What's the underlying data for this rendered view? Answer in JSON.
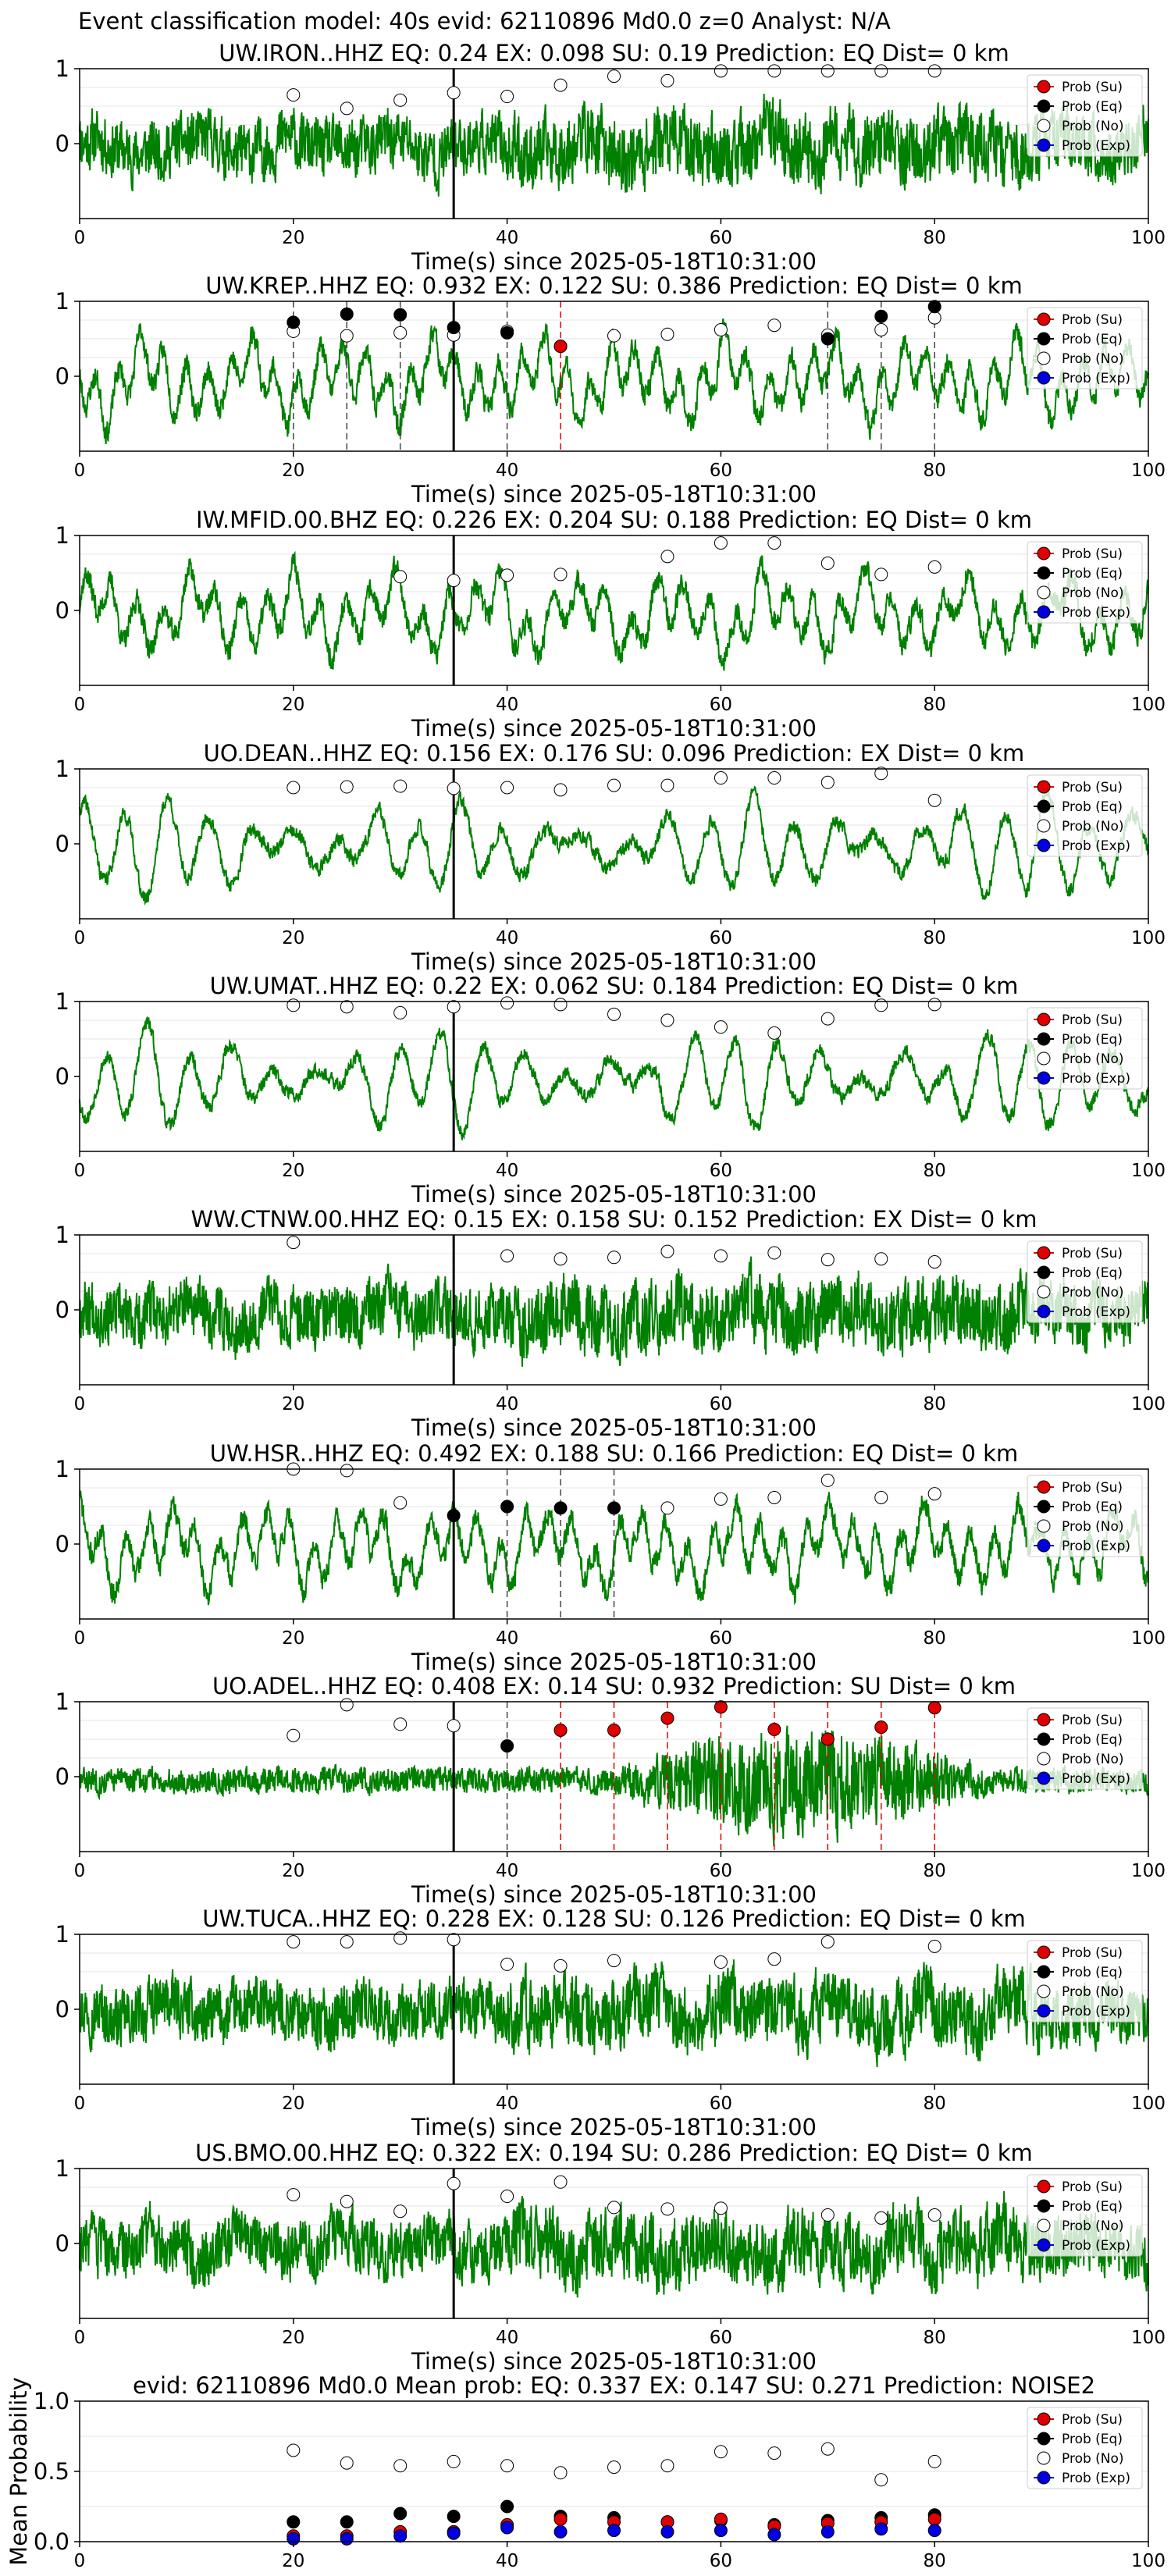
{
  "figure": {
    "title": "Event classification model: 40s evid: 62110896 Md0.0 z=0 Analyst: N/A"
  },
  "legend": {
    "entries": [
      {
        "label": "Prob (Su)",
        "color": "#e00000"
      },
      {
        "label": "Prob (Eq)",
        "color": "#000000"
      },
      {
        "label": "Prob (No)",
        "color": "#ffffff"
      },
      {
        "label": "Prob (Exp)",
        "color": "#0000e0"
      }
    ]
  },
  "colors": {
    "trace": "#008000",
    "su": "#e00000",
    "eq": "#000000",
    "no": "#ffffff",
    "exp": "#0000e0",
    "pick": "#000000"
  },
  "chart_data": [
    {
      "type": "line",
      "title": "UW.IRON..HHZ   EQ: 0.24  EX: 0.098  SU: 0.19   Prediction: EQ    Dist= 0 km",
      "xlabel": "Time(s) since 2025-05-18T10:31:00",
      "xlim": [
        0,
        100
      ],
      "xticks": [
        0,
        20,
        40,
        60,
        80,
        100
      ],
      "ylim": [
        -1,
        1
      ],
      "yticks": [
        0,
        1
      ],
      "pick_time": 35,
      "seed": 11,
      "trace_style": "noisy",
      "prob_times": [
        20,
        25,
        30,
        35,
        40,
        45,
        50,
        55,
        60,
        65,
        70,
        75,
        80
      ],
      "no": [
        0.65,
        0.47,
        0.58,
        0.68,
        0.63,
        0.78,
        0.9,
        0.84,
        0.97,
        0.97,
        0.97,
        0.97,
        0.97
      ],
      "eq_points": [],
      "su_points": [],
      "exp_points": [],
      "eq_lines": [],
      "su_lines": [],
      "exp_lines": []
    },
    {
      "type": "line",
      "title": "UW.KREP..HHZ   EQ: 0.932  EX: 0.122  SU: 0.386   Prediction: EQ    Dist= 0 km",
      "xlabel": "Time(s) since 2025-05-18T10:31:00",
      "xlim": [
        0,
        100
      ],
      "xticks": [
        0,
        20,
        40,
        60,
        80,
        100
      ],
      "ylim": [
        -1,
        1
      ],
      "yticks": [
        0,
        1
      ],
      "pick_time": 35,
      "seed": 23,
      "trace_style": "smooth",
      "prob_times": [
        20,
        25,
        30,
        35,
        40,
        45,
        50,
        55,
        60,
        65,
        70,
        75,
        80
      ],
      "no": [
        0.6,
        0.54,
        0.58,
        0.55,
        0.6,
        0.4,
        0.54,
        0.56,
        0.62,
        0.68,
        0.55,
        0.62,
        0.78
      ],
      "eq_points": [
        [
          20,
          0.72
        ],
        [
          25,
          0.83
        ],
        [
          30,
          0.82
        ],
        [
          35,
          0.65
        ],
        [
          40,
          0.58
        ],
        [
          70,
          0.5
        ],
        [
          75,
          0.8
        ],
        [
          80,
          0.93
        ]
      ],
      "su_points": [
        [
          45,
          0.4
        ]
      ],
      "exp_points": [],
      "eq_lines": [
        20,
        25,
        30,
        40,
        70,
        75,
        80
      ],
      "su_lines": [
        45
      ],
      "exp_lines": []
    },
    {
      "type": "line",
      "title": "IW.MFID.00.BHZ   EQ: 0.226  EX: 0.204  SU: 0.188   Prediction: EQ    Dist= 0 km",
      "xlabel": "Time(s) since 2025-05-18T10:31:00",
      "xlim": [
        0,
        100
      ],
      "xticks": [
        0,
        20,
        40,
        60,
        80,
        100
      ],
      "ylim": [
        -1,
        1
      ],
      "yticks": [
        0,
        1
      ],
      "pick_time": 35,
      "seed": 37,
      "trace_style": "smooth",
      "prob_times": [
        30,
        35,
        40,
        45,
        55,
        60,
        65,
        70,
        75,
        80
      ],
      "no": [
        0.45,
        0.4,
        0.47,
        0.48,
        0.72,
        0.9,
        0.9,
        0.63,
        0.48,
        0.58
      ],
      "eq_points": [],
      "su_points": [],
      "exp_points": [],
      "eq_lines": [],
      "su_lines": [],
      "exp_lines": []
    },
    {
      "type": "line",
      "title": "UO.DEAN..HHZ   EQ: 0.156  EX: 0.176  SU: 0.096   Prediction: EX    Dist= 0 km",
      "xlabel": "Time(s) since 2025-05-18T10:31:00",
      "xlim": [
        0,
        100
      ],
      "xticks": [
        0,
        20,
        40,
        60,
        80,
        100
      ],
      "ylim": [
        -1,
        1
      ],
      "yticks": [
        0,
        1
      ],
      "pick_time": 35,
      "seed": 41,
      "trace_style": "wave",
      "prob_times": [
        20,
        25,
        30,
        35,
        40,
        45,
        50,
        55,
        60,
        65,
        70,
        75,
        80
      ],
      "no": [
        0.75,
        0.76,
        0.77,
        0.74,
        0.75,
        0.72,
        0.78,
        0.78,
        0.88,
        0.88,
        0.82,
        0.94,
        0.58
      ],
      "eq_points": [],
      "su_points": [],
      "exp_points": [],
      "eq_lines": [],
      "su_lines": [],
      "exp_lines": []
    },
    {
      "type": "line",
      "title": "UW.UMAT..HHZ   EQ: 0.22  EX: 0.062  SU: 0.184   Prediction: EQ    Dist= 0 km",
      "xlabel": "Time(s) since 2025-05-18T10:31:00",
      "xlim": [
        0,
        100
      ],
      "xticks": [
        0,
        20,
        40,
        60,
        80,
        100
      ],
      "ylim": [
        -1,
        1
      ],
      "yticks": [
        0,
        1
      ],
      "pick_time": 35,
      "seed": 53,
      "trace_style": "wave",
      "prob_times": [
        20,
        25,
        30,
        35,
        40,
        45,
        50,
        55,
        60,
        65,
        70,
        75,
        80
      ],
      "no": [
        0.95,
        0.93,
        0.85,
        0.93,
        0.98,
        0.96,
        0.83,
        0.75,
        0.66,
        0.58,
        0.77,
        0.95,
        0.96
      ],
      "eq_points": [],
      "su_points": [],
      "exp_points": [],
      "eq_lines": [],
      "su_lines": [],
      "exp_lines": []
    },
    {
      "type": "line",
      "title": "WW.CTNW.00.HHZ   EQ: 0.15  EX: 0.158  SU: 0.152   Prediction: EX    Dist= 0 km",
      "xlabel": "Time(s) since 2025-05-18T10:31:00",
      "xlim": [
        0,
        100
      ],
      "xticks": [
        0,
        20,
        40,
        60,
        80,
        100
      ],
      "ylim": [
        -1,
        1
      ],
      "yticks": [
        0,
        1
      ],
      "pick_time": 35,
      "seed": 67,
      "trace_style": "noisy",
      "prob_times": [
        20,
        40,
        45,
        50,
        55,
        60,
        65,
        70,
        75,
        80
      ],
      "no": [
        0.9,
        0.72,
        0.68,
        0.7,
        0.78,
        0.72,
        0.76,
        0.67,
        0.68,
        0.64
      ],
      "eq_points": [],
      "su_points": [],
      "exp_points": [],
      "eq_lines": [],
      "su_lines": [],
      "exp_lines": []
    },
    {
      "type": "line",
      "title": "UW.HSR..HHZ   EQ: 0.492  EX: 0.188  SU: 0.166   Prediction: EQ    Dist= 0 km",
      "xlabel": "Time(s) since 2025-05-18T10:31:00",
      "xlim": [
        0,
        100
      ],
      "xticks": [
        0,
        20,
        40,
        60,
        80,
        100
      ],
      "ylim": [
        -1,
        1
      ],
      "yticks": [
        0,
        1
      ],
      "pick_time": 35,
      "seed": 71,
      "trace_style": "smooth",
      "prob_times": [
        20,
        25,
        30,
        55,
        60,
        65,
        70,
        75,
        80
      ],
      "no": [
        1.0,
        0.98,
        0.55,
        0.48,
        0.6,
        0.62,
        0.85,
        0.62,
        0.67
      ],
      "eq_points": [
        [
          35,
          0.38
        ],
        [
          40,
          0.5
        ],
        [
          45,
          0.48
        ],
        [
          50,
          0.48
        ]
      ],
      "su_points": [],
      "exp_points": [],
      "eq_lines": [
        40,
        45,
        50
      ],
      "su_lines": [],
      "exp_lines": []
    },
    {
      "type": "line",
      "title": "UO.ADEL..HHZ   EQ: 0.408  EX: 0.14  SU: 0.932   Prediction: SU    Dist= 0 km",
      "xlabel": "Time(s) since 2025-05-18T10:31:00",
      "xlim": [
        0,
        100
      ],
      "xticks": [
        0,
        20,
        40,
        60,
        80,
        100
      ],
      "ylim": [
        -1,
        1
      ],
      "yticks": [
        0,
        1
      ],
      "pick_time": 35,
      "seed": 83,
      "trace_style": "burst",
      "prob_times": [
        20,
        25,
        30,
        35
      ],
      "no": [
        0.55,
        0.96,
        0.7,
        0.68
      ],
      "eq_points": [
        [
          40,
          0.41
        ]
      ],
      "su_points": [
        [
          45,
          0.62
        ],
        [
          50,
          0.62
        ],
        [
          55,
          0.78
        ],
        [
          60,
          0.93
        ],
        [
          65,
          0.63
        ],
        [
          70,
          0.5
        ],
        [
          75,
          0.66
        ],
        [
          80,
          0.92
        ]
      ],
      "exp_points": [],
      "eq_lines": [
        40
      ],
      "su_lines": [
        45,
        50,
        55,
        60,
        65,
        70,
        75,
        80
      ],
      "exp_lines": []
    },
    {
      "type": "line",
      "title": "UW.TUCA..HHZ   EQ: 0.228  EX: 0.128  SU: 0.126   Prediction: EQ    Dist= 0 km",
      "xlabel": "Time(s) since 2025-05-18T10:31:00",
      "xlim": [
        0,
        100
      ],
      "xticks": [
        0,
        20,
        40,
        60,
        80,
        100
      ],
      "ylim": [
        -1,
        1
      ],
      "yticks": [
        0,
        1
      ],
      "pick_time": 35,
      "seed": 97,
      "trace_style": "noisy",
      "prob_times": [
        20,
        25,
        30,
        35,
        40,
        45,
        50,
        60,
        65,
        70,
        80
      ],
      "no": [
        0.9,
        0.9,
        0.95,
        0.93,
        0.6,
        0.58,
        0.65,
        0.63,
        0.67,
        0.9,
        0.84
      ],
      "eq_points": [],
      "su_points": [],
      "exp_points": [],
      "eq_lines": [],
      "su_lines": [],
      "exp_lines": []
    },
    {
      "type": "line",
      "title": "US.BMO.00.HHZ   EQ: 0.322  EX: 0.194  SU: 0.286   Prediction: EQ    Dist= 0 km",
      "xlabel": "Time(s) since 2025-05-18T10:31:00",
      "xlim": [
        0,
        100
      ],
      "xticks": [
        0,
        20,
        40,
        60,
        80,
        100
      ],
      "ylim": [
        -1,
        1
      ],
      "yticks": [
        0,
        1
      ],
      "pick_time": 35,
      "seed": 103,
      "trace_style": "noisy",
      "prob_times": [
        20,
        25,
        30,
        35,
        40,
        45,
        50,
        55,
        60,
        70,
        75,
        80
      ],
      "no": [
        0.65,
        0.56,
        0.43,
        0.8,
        0.63,
        0.82,
        0.48,
        0.46,
        0.47,
        0.38,
        0.34,
        0.38
      ],
      "eq_points": [],
      "su_points": [],
      "exp_points": [],
      "eq_lines": [],
      "su_lines": [],
      "exp_lines": []
    },
    {
      "type": "scatter",
      "title": "evid: 62110896  Md0.0   Mean prob:   EQ: 0.337  EX: 0.147  SU: 0.271   Prediction: NOISE2",
      "ylabel": "Mean Probability",
      "xlim": [
        0,
        100
      ],
      "xticks": [
        0,
        20,
        40,
        60,
        80,
        100
      ],
      "ylim": [
        0,
        1
      ],
      "yticks": [
        0.0,
        0.5,
        1.0
      ],
      "x": [
        20,
        25,
        30,
        35,
        40,
        45,
        50,
        55,
        60,
        65,
        70,
        75,
        80
      ],
      "no": [
        0.65,
        0.56,
        0.54,
        0.57,
        0.54,
        0.49,
        0.53,
        0.54,
        0.64,
        0.63,
        0.66,
        0.44,
        0.57
      ],
      "eq": [
        0.14,
        0.14,
        0.2,
        0.18,
        0.25,
        0.18,
        0.17,
        0.14,
        0.15,
        0.12,
        0.15,
        0.17,
        0.19
      ],
      "su": [
        0.04,
        0.04,
        0.07,
        0.07,
        0.12,
        0.16,
        0.14,
        0.14,
        0.16,
        0.11,
        0.13,
        0.14,
        0.16
      ],
      "exp": [
        0.02,
        0.02,
        0.04,
        0.06,
        0.1,
        0.07,
        0.08,
        0.07,
        0.08,
        0.05,
        0.07,
        0.09,
        0.08
      ]
    }
  ]
}
